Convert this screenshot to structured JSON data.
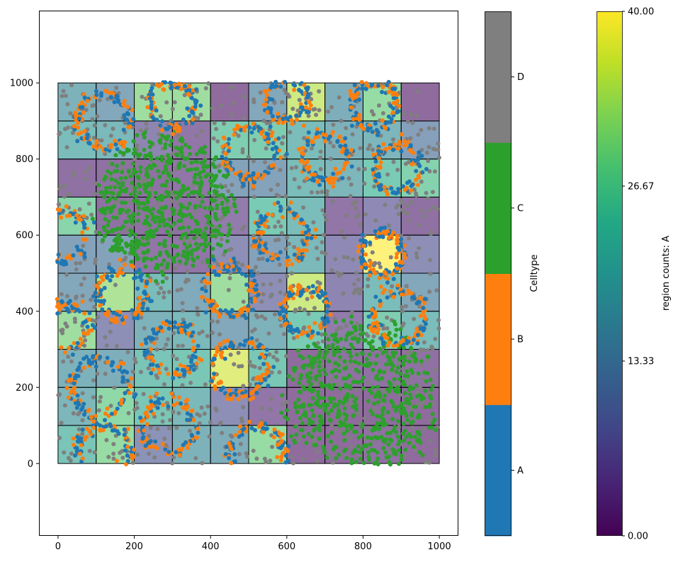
{
  "chart_data": {
    "type": "scatter",
    "title": "",
    "xlabel": "",
    "ylabel": "",
    "xlim": [
      -50,
      1050
    ],
    "ylim": [
      -190,
      1190
    ],
    "xticks": [
      "0",
      "200",
      "400",
      "600",
      "800",
      "1000"
    ],
    "yticks": [
      "0",
      "200",
      "400",
      "600",
      "800",
      "1000"
    ],
    "grid": false,
    "heatmap": {
      "description_value": "region counts: A",
      "cell_size": 100,
      "x_edges": [
        0,
        100,
        200,
        300,
        400,
        500,
        600,
        700,
        800,
        900,
        1000
      ],
      "y_edges": [
        0,
        100,
        200,
        300,
        400,
        500,
        600,
        700,
        800,
        900,
        1000
      ],
      "counts_rows_top_to_bottom": [
        [
          17,
          14,
          30,
          30,
          1,
          14,
          35,
          16,
          29,
          1
        ],
        [
          20,
          19,
          6,
          3,
          25,
          25,
          20,
          17,
          18,
          12
        ],
        [
          2,
          2,
          2,
          3,
          13,
          13,
          20,
          18,
          24,
          26
        ],
        [
          27,
          2,
          2,
          2,
          4,
          24,
          20,
          3,
          7,
          2
        ],
        [
          13,
          13,
          3,
          3,
          8,
          13,
          19,
          7,
          40,
          8
        ],
        [
          14,
          32,
          20,
          15,
          30,
          8,
          35,
          6,
          20,
          14
        ],
        [
          30,
          8,
          17,
          19,
          14,
          17,
          24,
          4,
          25,
          20
        ],
        [
          17,
          16,
          22,
          23,
          37,
          23,
          1,
          2,
          2,
          2
        ],
        [
          18,
          28,
          23,
          19,
          8,
          3,
          1,
          1,
          1,
          1
        ],
        [
          22,
          29,
          9,
          17,
          16,
          29,
          1,
          1,
          2,
          1
        ]
      ],
      "colormap": "viridis",
      "alpha": 0.6
    },
    "celltypes": [
      {
        "name": "A",
        "color": "#1f77b4"
      },
      {
        "name": "B",
        "color": "#ff7f0e"
      },
      {
        "name": "C",
        "color": "#2ca02c"
      },
      {
        "name": "D",
        "color": "#7f7f7f"
      }
    ],
    "point_groups": {
      "rings_A_B": [
        {
          "cx": 120,
          "cy": 900,
          "r": 70
        },
        {
          "cx": 300,
          "cy": 940,
          "r": 60
        },
        {
          "cx": 600,
          "cy": 955,
          "r": 55
        },
        {
          "cx": 830,
          "cy": 940,
          "r": 60
        },
        {
          "cx": 505,
          "cy": 815,
          "r": 70
        },
        {
          "cx": 700,
          "cy": 805,
          "r": 60
        },
        {
          "cx": 890,
          "cy": 775,
          "r": 60
        },
        {
          "cx": 10,
          "cy": 600,
          "r": 65
        },
        {
          "cx": 590,
          "cy": 600,
          "r": 65
        },
        {
          "cx": 850,
          "cy": 550,
          "r": 55
        },
        {
          "cx": 170,
          "cy": 445,
          "r": 65
        },
        {
          "cx": 450,
          "cy": 455,
          "r": 65
        },
        {
          "cx": 650,
          "cy": 400,
          "r": 60
        },
        {
          "cx": 895,
          "cy": 385,
          "r": 70
        },
        {
          "cx": 20,
          "cy": 360,
          "r": 60
        },
        {
          "cx": 300,
          "cy": 300,
          "r": 65
        },
        {
          "cx": 110,
          "cy": 200,
          "r": 75
        },
        {
          "cx": 480,
          "cy": 250,
          "r": 70
        },
        {
          "cx": 290,
          "cy": 100,
          "r": 70
        },
        {
          "cx": 120,
          "cy": 30,
          "r": 70
        },
        {
          "cx": 520,
          "cy": 30,
          "r": 70
        }
      ],
      "clusters_C": [
        {
          "cx": 280,
          "cy": 680,
          "r": 180
        },
        {
          "cx": 800,
          "cy": 170,
          "r": 200
        }
      ],
      "background_D": {
        "x_range": [
          0,
          1000
        ],
        "y_range": [
          0,
          1000
        ]
      }
    },
    "colorbars": [
      {
        "label": "Celltype",
        "type": "categorical",
        "ticks": [
          "A",
          "B",
          "C",
          "D"
        ]
      },
      {
        "label": "region counts: A",
        "type": "continuous",
        "colormap": "viridis",
        "range": [
          0,
          40
        ],
        "ticks": [
          "0.00",
          "13.33",
          "26.67",
          "40.00"
        ]
      }
    ]
  }
}
